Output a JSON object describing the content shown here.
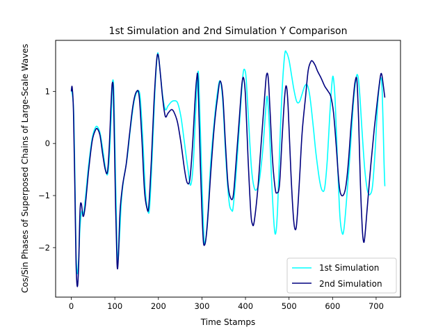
{
  "chart_data": {
    "type": "line",
    "title": "1st Simulation and 2nd Simulation Y Comparison",
    "xlabel": "Time Stamps",
    "ylabel": "Cos/Sin Phases of Superposed Chains of Large-Scale Waves",
    "xlim": [
      -36,
      756
    ],
    "ylim": [
      -2.95,
      1.98
    ],
    "xticks": [
      0,
      100,
      200,
      300,
      400,
      500,
      600,
      700
    ],
    "xtick_labels": [
      "0",
      "100",
      "200",
      "300",
      "400",
      "500",
      "600",
      "700"
    ],
    "yticks": [
      -2,
      -1,
      0,
      1
    ],
    "ytick_labels": [
      "−2",
      "−1",
      "0",
      "1"
    ],
    "grid": false,
    "legend_position": "lower-right",
    "series": [
      {
        "name": "1st Simulation",
        "color": "#00ffff",
        "points": [
          [
            0,
            1.05
          ],
          [
            5,
            0.7
          ],
          [
            8,
            -0.5
          ],
          [
            11,
            -2.1
          ],
          [
            14,
            -2.5
          ],
          [
            17,
            -2.2
          ],
          [
            20,
            -1.6
          ],
          [
            24,
            -1.3
          ],
          [
            28,
            -1.35
          ],
          [
            33,
            -1.0
          ],
          [
            40,
            -0.4
          ],
          [
            48,
            0.1
          ],
          [
            55,
            0.3
          ],
          [
            60,
            0.32
          ],
          [
            66,
            0.2
          ],
          [
            72,
            -0.1
          ],
          [
            78,
            -0.45
          ],
          [
            83,
            -0.6
          ],
          [
            87,
            -0.3
          ],
          [
            92,
            0.6
          ],
          [
            95,
            1.2
          ],
          [
            98,
            0.9
          ],
          [
            102,
            -0.8
          ],
          [
            106,
            -2.2
          ],
          [
            110,
            -1.9
          ],
          [
            115,
            -1.1
          ],
          [
            120,
            -0.7
          ],
          [
            128,
            -0.3
          ],
          [
            136,
            0.3
          ],
          [
            144,
            0.8
          ],
          [
            152,
            1.0
          ],
          [
            158,
            0.9
          ],
          [
            164,
            0.1
          ],
          [
            170,
            -0.9
          ],
          [
            176,
            -1.3
          ],
          [
            180,
            -1.2
          ],
          [
            186,
            -0.2
          ],
          [
            192,
            1.0
          ],
          [
            197,
            1.65
          ],
          [
            200,
            1.7
          ],
          [
            205,
            1.3
          ],
          [
            210,
            0.9
          ],
          [
            216,
            0.65
          ],
          [
            222,
            0.72
          ],
          [
            230,
            0.8
          ],
          [
            236,
            0.82
          ],
          [
            244,
            0.78
          ],
          [
            252,
            0.5
          ],
          [
            260,
            0.0
          ],
          [
            268,
            -0.5
          ],
          [
            274,
            -0.8
          ],
          [
            280,
            -0.4
          ],
          [
            285,
            0.5
          ],
          [
            290,
            1.3
          ],
          [
            293,
            1.2
          ],
          [
            298,
            -0.2
          ],
          [
            304,
            -1.7
          ],
          [
            308,
            -1.9
          ],
          [
            314,
            -1.3
          ],
          [
            320,
            -0.4
          ],
          [
            328,
            0.4
          ],
          [
            336,
            1.0
          ],
          [
            342,
            1.2
          ],
          [
            348,
            0.8
          ],
          [
            355,
            -0.3
          ],
          [
            362,
            -1.1
          ],
          [
            368,
            -1.28
          ],
          [
            372,
            -1.2
          ],
          [
            380,
            -0.4
          ],
          [
            388,
            0.6
          ],
          [
            394,
            1.3
          ],
          [
            398,
            1.42
          ],
          [
            402,
            1.2
          ],
          [
            408,
            0.3
          ],
          [
            414,
            -0.5
          ],
          [
            420,
            -0.85
          ],
          [
            426,
            -0.88
          ],
          [
            432,
            -0.7
          ],
          [
            440,
            -0.1
          ],
          [
            446,
            0.6
          ],
          [
            450,
            0.9
          ],
          [
            455,
            0.3
          ],
          [
            460,
            -0.7
          ],
          [
            466,
            -1.6
          ],
          [
            470,
            -1.7
          ],
          [
            474,
            -1.2
          ],
          [
            479,
            0.0
          ],
          [
            484,
            1.0
          ],
          [
            490,
            1.7
          ],
          [
            494,
            1.75
          ],
          [
            500,
            1.6
          ],
          [
            506,
            1.3
          ],
          [
            512,
            1.0
          ],
          [
            518,
            0.8
          ],
          [
            524,
            0.8
          ],
          [
            530,
            0.95
          ],
          [
            536,
            1.1
          ],
          [
            542,
            1.12
          ],
          [
            548,
            0.9
          ],
          [
            556,
            0.3
          ],
          [
            562,
            -0.2
          ],
          [
            570,
            -0.7
          ],
          [
            576,
            -0.9
          ],
          [
            582,
            -0.85
          ],
          [
            588,
            -0.3
          ],
          [
            594,
            0.6
          ],
          [
            599,
            1.2
          ],
          [
            602,
            1.25
          ],
          [
            606,
            0.8
          ],
          [
            612,
            -0.5
          ],
          [
            617,
            -1.4
          ],
          [
            622,
            -1.72
          ],
          [
            626,
            -1.65
          ],
          [
            632,
            -1.1
          ],
          [
            640,
            -0.2
          ],
          [
            648,
            0.8
          ],
          [
            654,
            1.25
          ],
          [
            658,
            1.3
          ],
          [
            662,
            1.0
          ],
          [
            668,
            0.2
          ],
          [
            674,
            -0.5
          ],
          [
            680,
            -0.9
          ],
          [
            686,
            -0.98
          ],
          [
            692,
            -0.8
          ],
          [
            698,
            -0.1
          ],
          [
            704,
            0.8
          ],
          [
            710,
            1.25
          ],
          [
            714,
            1.0
          ],
          [
            718,
            -0.3
          ],
          [
            720,
            -0.82
          ]
        ]
      },
      {
        "name": "2nd Simulation",
        "color": "#00007f",
        "points": [
          [
            0,
            1.0
          ],
          [
            2,
            1.08
          ],
          [
            5,
            0.6
          ],
          [
            8,
            -0.8
          ],
          [
            11,
            -2.3
          ],
          [
            14,
            -2.75
          ],
          [
            17,
            -2.3
          ],
          [
            20,
            -1.3
          ],
          [
            23,
            -1.15
          ],
          [
            27,
            -1.4
          ],
          [
            32,
            -1.2
          ],
          [
            40,
            -0.5
          ],
          [
            48,
            0.05
          ],
          [
            55,
            0.25
          ],
          [
            60,
            0.28
          ],
          [
            66,
            0.15
          ],
          [
            72,
            -0.2
          ],
          [
            78,
            -0.5
          ],
          [
            83,
            -0.55
          ],
          [
            87,
            -0.1
          ],
          [
            91,
            0.7
          ],
          [
            94,
            1.15
          ],
          [
            97,
            0.9
          ],
          [
            101,
            -0.9
          ],
          [
            105,
            -2.3
          ],
          [
            108,
            -2.2
          ],
          [
            112,
            -1.3
          ],
          [
            118,
            -0.8
          ],
          [
            126,
            -0.4
          ],
          [
            134,
            0.2
          ],
          [
            142,
            0.75
          ],
          [
            150,
            1.0
          ],
          [
            156,
            0.9
          ],
          [
            162,
            0.1
          ],
          [
            168,
            -0.9
          ],
          [
            174,
            -1.25
          ],
          [
            178,
            -1.2
          ],
          [
            184,
            -0.3
          ],
          [
            190,
            0.8
          ],
          [
            196,
            1.6
          ],
          [
            200,
            1.68
          ],
          [
            205,
            1.3
          ],
          [
            210,
            0.85
          ],
          [
            216,
            0.52
          ],
          [
            222,
            0.58
          ],
          [
            230,
            0.65
          ],
          [
            236,
            0.6
          ],
          [
            244,
            0.4
          ],
          [
            252,
            0.0
          ],
          [
            260,
            -0.5
          ],
          [
            266,
            -0.75
          ],
          [
            272,
            -0.7
          ],
          [
            278,
            -0.1
          ],
          [
            284,
            0.8
          ],
          [
            288,
            1.25
          ],
          [
            291,
            1.2
          ],
          [
            296,
            -0.3
          ],
          [
            302,
            -1.7
          ],
          [
            306,
            -1.95
          ],
          [
            312,
            -1.6
          ],
          [
            320,
            -0.6
          ],
          [
            328,
            0.3
          ],
          [
            336,
            0.9
          ],
          [
            342,
            1.2
          ],
          [
            348,
            0.9
          ],
          [
            354,
            0.0
          ],
          [
            360,
            -0.8
          ],
          [
            366,
            -1.05
          ],
          [
            372,
            -1.0
          ],
          [
            378,
            -0.4
          ],
          [
            386,
            0.5
          ],
          [
            392,
            1.15
          ],
          [
            396,
            1.25
          ],
          [
            400,
            0.9
          ],
          [
            406,
            -0.3
          ],
          [
            412,
            -1.3
          ],
          [
            416,
            -1.55
          ],
          [
            420,
            -1.5
          ],
          [
            428,
            -0.9
          ],
          [
            436,
            0.0
          ],
          [
            444,
            0.9
          ],
          [
            448,
            1.3
          ],
          [
            452,
            1.28
          ],
          [
            456,
            0.7
          ],
          [
            462,
            -0.3
          ],
          [
            468,
            -0.85
          ],
          [
            472,
            -0.95
          ],
          [
            478,
            -0.8
          ],
          [
            484,
            0.1
          ],
          [
            490,
            0.9
          ],
          [
            494,
            1.1
          ],
          [
            498,
            0.7
          ],
          [
            504,
            -0.5
          ],
          [
            510,
            -1.4
          ],
          [
            514,
            -1.65
          ],
          [
            518,
            -1.5
          ],
          [
            524,
            -0.7
          ],
          [
            530,
            0.2
          ],
          [
            538,
            0.9
          ],
          [
            544,
            1.4
          ],
          [
            550,
            1.57
          ],
          [
            554,
            1.58
          ],
          [
            560,
            1.5
          ],
          [
            566,
            1.38
          ],
          [
            574,
            1.25
          ],
          [
            582,
            1.1
          ],
          [
            590,
            1.0
          ],
          [
            596,
            0.9
          ],
          [
            602,
            0.6
          ],
          [
            608,
            0.0
          ],
          [
            614,
            -0.7
          ],
          [
            618,
            -0.95
          ],
          [
            624,
            -1.0
          ],
          [
            630,
            -0.85
          ],
          [
            636,
            -0.4
          ],
          [
            642,
            0.3
          ],
          [
            648,
            0.9
          ],
          [
            652,
            1.2
          ],
          [
            656,
            1.2
          ],
          [
            660,
            0.4
          ],
          [
            664,
            -0.8
          ],
          [
            668,
            -1.6
          ],
          [
            671,
            -1.88
          ],
          [
            674,
            -1.8
          ],
          [
            680,
            -1.2
          ],
          [
            688,
            -0.4
          ],
          [
            696,
            0.3
          ],
          [
            704,
            0.9
          ],
          [
            710,
            1.3
          ],
          [
            713,
            1.32
          ],
          [
            716,
            1.15
          ],
          [
            720,
            0.88
          ]
        ]
      }
    ]
  }
}
